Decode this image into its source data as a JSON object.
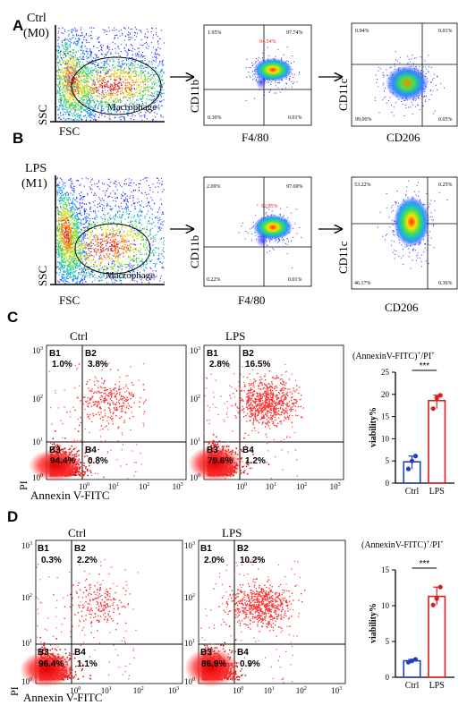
{
  "panel_letters": [
    "A",
    "B",
    "C",
    "D"
  ],
  "panel_a": {
    "condition": [
      "Ctrl",
      "(M0)"
    ],
    "scatter1": {
      "xlabel": "FSC",
      "ylabel": "SSC",
      "gate_label": "Macrophage"
    },
    "scatter2": {
      "xlabel": "F4/80",
      "ylabel": "CD11b",
      "q_ul": "1.95%",
      "q_ur": "97.74%",
      "q_ll": "0.30%",
      "q_lr": "0.01%",
      "gate_pct": "94.54%"
    },
    "scatter3": {
      "xlabel": "CD206",
      "ylabel": "CD11c",
      "q_ul": "0.94%",
      "q_ur": "0.01%",
      "q_ll": "99.00%",
      "q_lr": "0.05%"
    }
  },
  "panel_b": {
    "condition": [
      "LPS",
      "(M1)"
    ],
    "scatter1": {
      "xlabel": "FSC",
      "ylabel": "SSC",
      "gate_label": "Macrophage"
    },
    "scatter2": {
      "xlabel": "F4/80",
      "ylabel": "CD11b",
      "q_ul": "2.09%",
      "q_ur": "97.69%",
      "q_ll": "0.22%",
      "q_lr": "0.01%",
      "gate_pct": "92.05%"
    },
    "scatter3": {
      "xlabel": "CD206",
      "ylabel": "CD11c",
      "q_ul": "53.22%",
      "q_ur": "0.25%",
      "q_ll": "46.17%",
      "q_lr": "0.36%"
    }
  },
  "panel_c": {
    "plots": [
      {
        "title": "Ctrl",
        "B1": "B1",
        "B1v": "1.0%",
        "B2": "B2",
        "B2v": "3.8%",
        "B3": "B3",
        "B3v": "94.4%",
        "B4": "B4",
        "B4v": "0.8%"
      },
      {
        "title": "LPS",
        "B1": "B1",
        "B1v": "2.8%",
        "B2": "B2",
        "B2v": "16.5%",
        "B3": "B3",
        "B3v": "79.6%",
        "B4": "B4",
        "B4v": "1.2%"
      }
    ],
    "xlabel": "Annexin V-FITC",
    "ylabel": "PI",
    "ticks": [
      "10",
      "0",
      "1",
      "2",
      "3"
    ],
    "bar_title_main": "(AnnexinV-FITC)",
    "bar_title_sup1": "+",
    "bar_title_mid": "/PI",
    "bar_title_sup2": "+",
    "bar_ylabel": "viability%",
    "bar_sig": "***"
  },
  "panel_d": {
    "plots": [
      {
        "title": "Ctrl",
        "B1": "B1",
        "B1v": "0.3%",
        "B2": "B2",
        "B2v": "2.2%",
        "B3": "B3",
        "B3v": "96.4%",
        "B4": "B4",
        "B4v": "1.1%"
      },
      {
        "title": "LPS",
        "B1": "B1",
        "B1v": "2.0%",
        "B2": "B2",
        "B2v": "10.2%",
        "B3": "B3",
        "B3v": "86.9%",
        "B4": "B4",
        "B4v": "0.9%"
      }
    ],
    "xlabel": "Annexin V-FITC",
    "ylabel": "PI",
    "bar_title_main": "(AnnexinV-FITC)",
    "bar_title_sup1": "+",
    "bar_title_mid": "/PI",
    "bar_title_sup2": "+",
    "bar_ylabel": "viability%",
    "bar_sig": "***"
  },
  "chart_data": [
    {
      "type": "bar",
      "panel": "C",
      "categories": [
        "Ctrl",
        "LPS"
      ],
      "values": [
        4.8,
        18.6
      ],
      "points": [
        [
          3.2,
          5.0,
          6.1
        ],
        [
          16.8,
          19.2,
          19.8
        ]
      ],
      "ylim": [
        0,
        25
      ],
      "yticks": [
        0,
        5,
        10,
        15,
        20,
        25
      ],
      "colors": [
        "#1f3fbf",
        "#d62020"
      ]
    },
    {
      "type": "bar",
      "panel": "D",
      "categories": [
        "Ctrl",
        "LPS"
      ],
      "values": [
        2.3,
        11.3
      ],
      "points": [
        [
          2.1,
          2.3,
          2.5
        ],
        [
          10.1,
          11.0,
          12.6
        ]
      ],
      "ylim": [
        0,
        15
      ],
      "yticks": [
        0,
        5,
        10,
        15
      ],
      "colors": [
        "#1f3fbf",
        "#d62020"
      ]
    }
  ]
}
